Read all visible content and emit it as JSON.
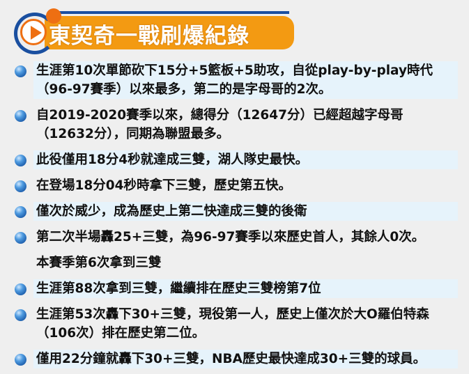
{
  "header": {
    "title": "東契奇一戰刷爆紀錄",
    "icon": "play-icon",
    "accent": "#f39a12",
    "line_color": "#1a4fa0"
  },
  "items": [
    {
      "text": "生涯第10次單節砍下15分+5籃板+5助攻，自從play-by-play時代（96-97賽季）以來最多，第二的是字母哥的2次。",
      "bullet": true,
      "shaded": true
    },
    {
      "text": "自2019-2020賽季以來，總得分（12647分）已經超越字母哥（12632分），同期為聯盟最多。",
      "bullet": true,
      "shaded": false
    },
    {
      "text": "此役僅用18分4秒就達成三雙，湖人隊史最快。",
      "bullet": true,
      "shaded": true
    },
    {
      "text": "在登場18分04秒時拿下三雙，歷史第五快。",
      "bullet": true,
      "shaded": false
    },
    {
      "text": "僅次於威少，成為歷史上第二快達成三雙的後衛",
      "bullet": true,
      "shaded": true
    },
    {
      "text": "第二次半場轟25+三雙，為96-97賽季以來歷史首人，其餘人0次。",
      "bullet": true,
      "shaded": false
    },
    {
      "text": "本賽季第6次拿到三雙",
      "bullet": false,
      "shaded": false
    },
    {
      "text": "生涯第88次拿到三雙，繼續排在歷史三雙榜第7位",
      "bullet": true,
      "shaded": true
    },
    {
      "text": "生涯第53次轟下30+三雙，現役第一人，歷史上僅次於大O羅伯特森（106次）排在歷史第二位。",
      "bullet": true,
      "shaded": false
    },
    {
      "text": "僅用22分鐘就轟下30+三雙，NBA歷史最快達成30+三雙的球員。",
      "bullet": true,
      "shaded": true
    }
  ]
}
